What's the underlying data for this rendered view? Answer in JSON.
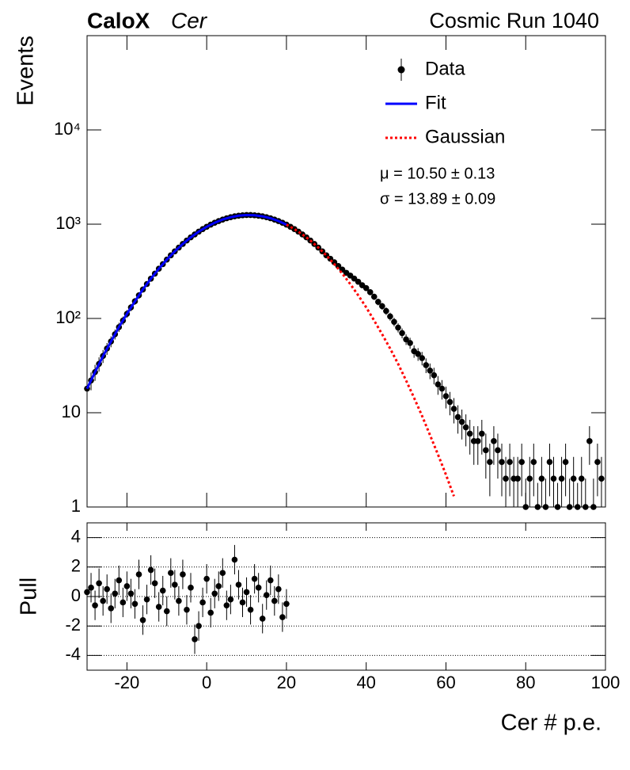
{
  "chart_data": [
    {
      "type": "scatter",
      "title": "CaloX",
      "subtitle": "Cer",
      "annotations": [
        "Cosmic Run 1040",
        "μ = 10.50 ± 0.13",
        "σ = 13.89 ± 0.09"
      ],
      "ylabel": "Events",
      "xlim": [
        -30,
        100
      ],
      "ylim": [
        1,
        100000
      ],
      "log_y": true,
      "yticks": [
        1,
        10,
        {
          "value": 100,
          "label": "10²"
        },
        {
          "value": 1000,
          "label": "10³"
        },
        {
          "value": 10000,
          "label": "10⁴"
        }
      ],
      "legend": "top-right",
      "series": [
        {
          "name": "Data",
          "color": "#000000",
          "x": [
            -30,
            -29,
            -28,
            -27,
            -26,
            -25,
            -24,
            -23,
            -22,
            -21,
            -20,
            -19,
            -18,
            -17,
            -16,
            -15,
            -14,
            -13,
            -12,
            -11,
            -10,
            -9,
            -8,
            -7,
            -6,
            -5,
            -4,
            -3,
            -2,
            -1,
            0,
            1,
            2,
            3,
            4,
            5,
            6,
            7,
            8,
            9,
            10,
            11,
            12,
            13,
            14,
            15,
            16,
            17,
            18,
            19,
            20,
            21,
            22,
            23,
            24,
            25,
            26,
            27,
            28,
            29,
            30,
            31,
            32,
            33,
            34,
            35,
            36,
            37,
            38,
            39,
            40,
            41,
            42,
            43,
            44,
            45,
            46,
            47,
            48,
            49,
            50,
            51,
            52,
            53,
            54,
            55,
            56,
            57,
            58,
            59,
            60,
            61,
            62,
            63,
            64,
            65,
            66,
            67,
            68,
            69,
            70,
            71,
            72,
            73,
            74,
            75,
            76,
            77,
            78,
            79,
            80,
            81,
            82,
            83,
            84,
            85,
            86,
            87,
            88,
            89,
            90,
            91,
            92,
            93,
            94,
            95,
            96,
            97,
            98,
            99
          ],
          "values": [
            18,
            22,
            27,
            33,
            40,
            48,
            57,
            68,
            81,
            95,
            112,
            131,
            152,
            176,
            203,
            232,
            264,
            299,
            337,
            377,
            421,
            467,
            515,
            565,
            617,
            671,
            725,
            779,
            834,
            887,
            939,
            989,
            1036,
            1080,
            1120,
            1156,
            1186,
            1211,
            1230,
            1243,
            1250,
            1250,
            1243,
            1230,
            1211,
            1186,
            1156,
            1120,
            1080,
            1036,
            989,
            939,
            887,
            834,
            779,
            725,
            671,
            617,
            565,
            515,
            467,
            430,
            395,
            360,
            330,
            305,
            285,
            265,
            245,
            225,
            210,
            190,
            170,
            150,
            135,
            120,
            105,
            92,
            80,
            70,
            60,
            55,
            45,
            42,
            38,
            32,
            28,
            25,
            20,
            18,
            15,
            13,
            11,
            9,
            8,
            7,
            6,
            5,
            5,
            6,
            4,
            3,
            5,
            4,
            3,
            2,
            3,
            2,
            2,
            3,
            1,
            2,
            3,
            0,
            2,
            1,
            3,
            2,
            0,
            2,
            3,
            1,
            2,
            0,
            2,
            1,
            5,
            1,
            3,
            2
          ],
          "errors": [
            4.2,
            4.7,
            5.2,
            5.7,
            6.3,
            6.9,
            7.5,
            8.2,
            9,
            9.7,
            10.6,
            11.4,
            12.3,
            13.3,
            14.2,
            15.2,
            16.2,
            17.3,
            18.4,
            19.4,
            20.5,
            21.6,
            22.7,
            23.8,
            24.8,
            25.9,
            26.9,
            27.9,
            28.9,
            29.8,
            30.6,
            31.4,
            32.2,
            32.9,
            33.5,
            34,
            34.4,
            34.8,
            35.1,
            35.3,
            35.4,
            35.4,
            35.3,
            35.1,
            34.8,
            34.4,
            34,
            33.5,
            32.9,
            32.2,
            31.4,
            30.6,
            29.8,
            28.9,
            27.9,
            26.9,
            25.9,
            24.8,
            23.8,
            22.7,
            21.6,
            20.7,
            19.9,
            19,
            18.2,
            17.5,
            16.9,
            16.3,
            15.7,
            15,
            14.5,
            13.8,
            13,
            12.2,
            11.6,
            11,
            10.2,
            9.6,
            8.9,
            8.4,
            7.7,
            7.4,
            6.7,
            6.5,
            6.2,
            5.7,
            5.3,
            5,
            4.5,
            4.2,
            3.9,
            3.6,
            3.3,
            3,
            2.8,
            2.6,
            2.4,
            2.2,
            2.2,
            2.4,
            2,
            1.7,
            2.2,
            2,
            1.7,
            1.4,
            1.7,
            1.4,
            1.4,
            1.7,
            1,
            1.4,
            1.7,
            1.8,
            1.4,
            1,
            1.7,
            1.4,
            1.8,
            1.4,
            1.7,
            1,
            1.4,
            1.8,
            1.4,
            1,
            2.2,
            1,
            1.7,
            1.4
          ]
        },
        {
          "name": "Fit",
          "color": "#0000ff",
          "line_style": "solid",
          "x": [
            -30,
            -28,
            -26,
            -24,
            -22,
            -20,
            -18,
            -16,
            -14,
            -12,
            -10,
            -8,
            -6,
            -4,
            -2,
            0,
            2,
            4,
            6,
            8,
            10,
            12,
            14,
            16,
            18,
            20
          ],
          "values": [
            18,
            27,
            40,
            57,
            81,
            112,
            152,
            203,
            264,
            337,
            421,
            515,
            617,
            725,
            834,
            939,
            1036,
            1120,
            1186,
            1230,
            1250,
            1243,
            1211,
            1156,
            1080,
            989
          ]
        },
        {
          "name": "Gaussian",
          "color": "#ff0000",
          "line_style": "dotted",
          "x": [
            20,
            22,
            24,
            26,
            28,
            30,
            32,
            34,
            36,
            38,
            40,
            42,
            44,
            46,
            48,
            50,
            52,
            54,
            56,
            58,
            60,
            62
          ],
          "values": [
            989,
            887,
            779,
            671,
            565,
            467,
            377,
            299,
            232,
            176,
            131,
            95,
            68,
            48,
            33,
            22,
            14.4,
            9.3,
            5.8,
            3.6,
            2.2,
            1.3
          ]
        }
      ]
    },
    {
      "type": "scatter",
      "xlabel": "Cer # p.e.",
      "ylabel": "Pull",
      "xlim": [
        -30,
        100
      ],
      "ylim": [
        -5,
        5
      ],
      "xticks": [
        -20,
        0,
        20,
        40,
        60,
        80,
        100
      ],
      "yticks": [
        -4,
        -2,
        0,
        2,
        4
      ],
      "grid": true,
      "color": "#000000",
      "x": [
        -30,
        -29,
        -28,
        -27,
        -26,
        -25,
        -24,
        -23,
        -22,
        -21,
        -20,
        -19,
        -18,
        -17,
        -16,
        -15,
        -14,
        -13,
        -12,
        -11,
        -10,
        -9,
        -8,
        -7,
        -6,
        -5,
        -4,
        -3,
        -2,
        -1,
        0,
        1,
        2,
        3,
        4,
        5,
        6,
        7,
        8,
        9,
        10,
        11,
        12,
        13,
        14,
        15,
        16,
        17,
        18,
        19,
        20
      ],
      "values": [
        0.3,
        0.6,
        -0.6,
        0.9,
        -0.3,
        0.5,
        -0.8,
        0.2,
        1.1,
        -0.4,
        0.7,
        0.2,
        -0.5,
        1.5,
        -1.6,
        -0.2,
        1.8,
        0.9,
        -0.7,
        0.4,
        -1.0,
        1.6,
        0.8,
        -0.3,
        1.5,
        -0.9,
        0.6,
        -2.9,
        -2.0,
        -0.4,
        1.2,
        -1.1,
        0.2,
        0.7,
        1.6,
        -0.6,
        -0.2,
        2.5,
        0.8,
        -0.4,
        0.3,
        -0.9,
        1.2,
        0.6,
        -1.5,
        0.1,
        1.1,
        -0.3,
        0.5,
        -1.4,
        -0.5
      ],
      "errors": [
        1,
        1,
        1,
        1,
        1,
        1,
        1,
        1,
        1,
        1,
        1,
        1,
        1,
        1,
        1,
        1,
        1,
        1,
        1,
        1,
        1,
        1,
        1,
        1,
        1,
        1,
        1,
        1,
        1,
        1,
        1,
        1,
        1,
        1,
        1,
        1,
        1,
        1,
        1,
        1,
        1,
        1,
        1,
        1,
        1,
        1,
        1,
        1,
        1,
        1,
        1
      ]
    }
  ]
}
